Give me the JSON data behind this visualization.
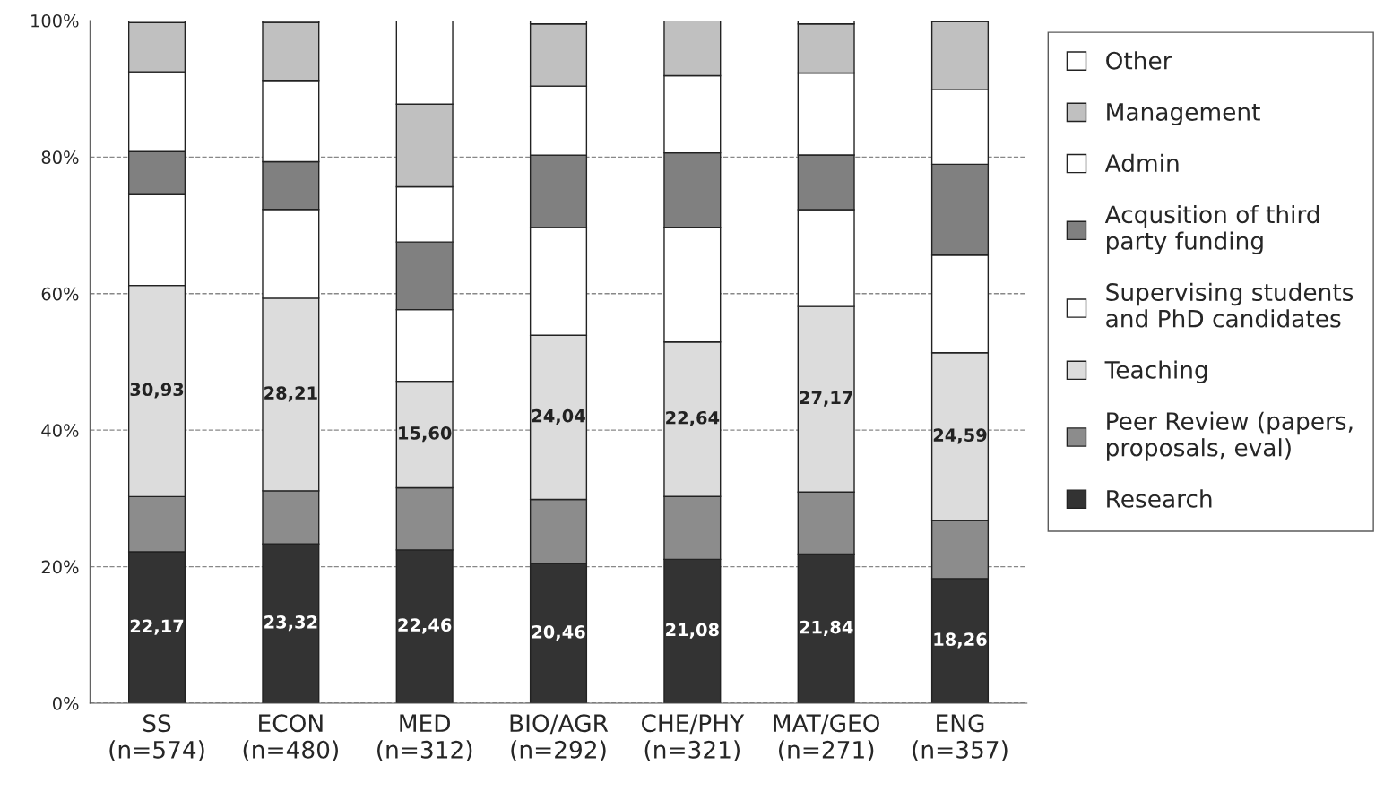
{
  "chart_data": {
    "type": "bar",
    "stacked": true,
    "categories": [
      "SS\n(n=574)",
      "ECON\n(n=480)",
      "MED\n(n=312)",
      "BIO/AGR\n(n=292)",
      "CHE/PHY\n(n=321)",
      "MAT/GEO\n(n=271)",
      "ENG\n(n=357)"
    ],
    "series": [
      {
        "name": "Research",
        "color": "#333333",
        "values": [
          22.17,
          23.32,
          22.46,
          20.46,
          21.08,
          21.84,
          18.26
        ],
        "value_labels": [
          "22,17",
          "23,32",
          "22,46",
          "20,46",
          "21,08",
          "21,84",
          "18,26"
        ]
      },
      {
        "name": "Peer Review (papers,\nproposals, eval)",
        "color": "#8c8c8c",
        "values": [
          8.1,
          7.8,
          9.1,
          9.4,
          9.2,
          9.1,
          8.5
        ]
      },
      {
        "name": "Teaching",
        "color": "#dcdcdc",
        "values": [
          30.93,
          28.21,
          15.6,
          24.04,
          22.64,
          27.17,
          24.59
        ],
        "value_labels": [
          "30,93",
          "28,21",
          "15,60",
          "24,04",
          "22,64",
          "27,17",
          "24,59"
        ]
      },
      {
        "name": "Supervising students\nand PhD candidates",
        "color": "#ffffff",
        "values": [
          13.3,
          13.0,
          10.5,
          15.8,
          16.8,
          14.2,
          14.3
        ]
      },
      {
        "name": "Acqusition of third\nparty funding",
        "color": "#808080",
        "values": [
          6.3,
          7.0,
          9.9,
          10.6,
          10.9,
          8.0,
          13.3
        ]
      },
      {
        "name": "Admin",
        "color": "#ffffff",
        "values": [
          11.7,
          11.9,
          8.1,
          10.1,
          11.3,
          12.0,
          10.9
        ]
      },
      {
        "name": "Management",
        "color": "#c0c0c0",
        "values": [
          7.2,
          8.5,
          12.1,
          9.1,
          8.1,
          7.2,
          10.0
        ]
      },
      {
        "name": "Other",
        "color": "#ffffff",
        "values": [
          0.3,
          0.3,
          12.2,
          0.5,
          null,
          0.5,
          0.2
        ]
      }
    ],
    "ylim": [
      0,
      100
    ],
    "yticks": [
      {
        "value": 0,
        "label": "0%"
      },
      {
        "value": 20,
        "label": "20%"
      },
      {
        "value": 40,
        "label": "40%"
      },
      {
        "value": 60,
        "label": "60%"
      },
      {
        "value": 80,
        "label": "80%"
      },
      {
        "value": 100,
        "label": "100%"
      }
    ],
    "grid": "y",
    "line_style": "dashed",
    "legend": "right"
  }
}
